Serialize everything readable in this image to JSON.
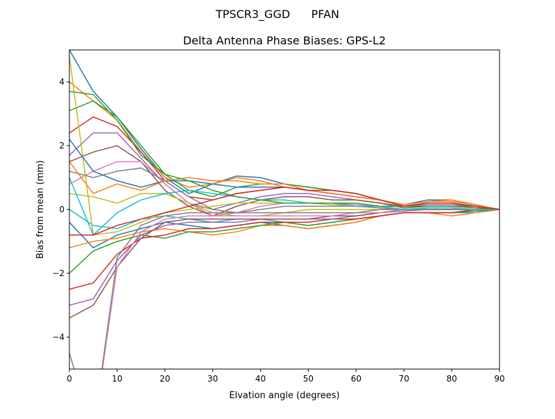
{
  "chart_data": {
    "type": "line",
    "suptitle": "TPSCR3_GGD      PFAN",
    "title": "Delta Antenna Phase Biases: GPS-L2",
    "xlabel": "Elvation angle (degrees)",
    "ylabel": "Bias from mean (mm)",
    "xlim": [
      0,
      90
    ],
    "ylim": [
      -5,
      5
    ],
    "xticks": [
      0,
      10,
      20,
      30,
      40,
      50,
      60,
      70,
      80,
      90
    ],
    "xtick_labels": [
      "0",
      "10",
      "20",
      "30",
      "40",
      "50",
      "60",
      "70",
      "80",
      "90"
    ],
    "yticks": [
      -4,
      -2,
      0,
      2,
      4
    ],
    "ytick_labels": [
      "−4",
      "−2",
      "0",
      "2",
      "4"
    ],
    "grid": false,
    "colors": [
      "#1f77b4",
      "#ff7f0e",
      "#2ca02c",
      "#d62728",
      "#9467bd",
      "#8c564b",
      "#e377c2",
      "#7f7f7f",
      "#bcbd22",
      "#17becf"
    ],
    "x": [
      0,
      5,
      10,
      15,
      20,
      25,
      30,
      35,
      40,
      45,
      50,
      55,
      60,
      65,
      70,
      75,
      80,
      85,
      90
    ],
    "series": [
      {
        "values": [
          5,
          3.7,
          2.9,
          1.9,
          1.0,
          0.5,
          0.8,
          1.05,
          1.0,
          0.8,
          0.7,
          0.6,
          0.5,
          0.3,
          0.1,
          0.2,
          0.2,
          0.1,
          0
        ]
      },
      {
        "values": [
          4.0,
          3.4,
          2.8,
          1.8,
          1.0,
          0.7,
          0.8,
          1.0,
          0.9,
          0.7,
          0.6,
          0.5,
          0.4,
          0.3,
          0.15,
          0.25,
          0.25,
          0.15,
          0
        ]
      },
      {
        "values": [
          3.1,
          3.4,
          2.9,
          2.0,
          1.1,
          0.6,
          0.4,
          0.7,
          0.8,
          0.8,
          0.7,
          0.6,
          0.5,
          0.3,
          0.1,
          0.2,
          0.2,
          0.1,
          0
        ]
      },
      {
        "values": [
          2.4,
          2.9,
          2.6,
          1.8,
          0.9,
          0.4,
          0.3,
          0.5,
          0.6,
          0.7,
          0.6,
          0.5,
          0.4,
          0.3,
          0.1,
          0.2,
          0.2,
          0.1,
          0
        ]
      },
      {
        "values": [
          1.7,
          2.4,
          2.4,
          1.6,
          0.8,
          0.2,
          0.0,
          0.2,
          0.4,
          0.5,
          0.5,
          0.4,
          0.3,
          0.2,
          0.1,
          0.15,
          0.15,
          0.1,
          0
        ]
      },
      {
        "values": [
          1.5,
          1.8,
          2.0,
          1.5,
          0.6,
          0.1,
          -0.2,
          0.1,
          0.3,
          0.4,
          0.4,
          0.3,
          0.3,
          0.2,
          0.05,
          0.1,
          0.1,
          0.05,
          0
        ]
      },
      {
        "values": [
          0.8,
          1.2,
          1.5,
          1.5,
          0.8,
          0.2,
          -0.2,
          -0.1,
          0.1,
          0.2,
          0.2,
          0.2,
          0.15,
          0.1,
          0,
          0.05,
          0.05,
          0,
          0
        ]
      },
      {
        "values": [
          1.2,
          1.0,
          1.2,
          1.3,
          0.9,
          0.4,
          0.0,
          -0.1,
          0.0,
          0.1,
          0.1,
          0.1,
          0.1,
          0.05,
          0,
          0,
          0,
          0,
          0
        ]
      },
      {
        "values": [
          0.5,
          0.4,
          0.2,
          0.5,
          0.5,
          0.2,
          -0.1,
          -0.2,
          -0.2,
          -0.1,
          0,
          0,
          0,
          0,
          0,
          0,
          0,
          0,
          0
        ]
      },
      {
        "values": [
          0,
          -0.5,
          -0.6,
          -0.3,
          -0.2,
          -0.3,
          -0.4,
          -0.3,
          -0.3,
          -0.4,
          -0.5,
          -0.4,
          -0.3,
          -0.2,
          -0.1,
          -0.1,
          -0.1,
          -0.1,
          0
        ]
      },
      {
        "values": [
          -0.4,
          -1.2,
          -0.8,
          -0.6,
          -0.4,
          -0.5,
          -0.6,
          -0.5,
          -0.4,
          -0.5,
          -0.6,
          -0.5,
          -0.4,
          -0.2,
          -0.1,
          -0.1,
          -0.1,
          -0.05,
          0
        ]
      },
      {
        "values": [
          -1.2,
          -1.0,
          -0.9,
          -0.7,
          -0.6,
          -0.7,
          -0.8,
          -0.7,
          -0.5,
          -0.5,
          -0.6,
          -0.5,
          -0.4,
          -0.2,
          -0.1,
          -0.1,
          -0.2,
          -0.1,
          0
        ]
      },
      {
        "values": [
          -2.0,
          -1.3,
          -1.0,
          -0.8,
          -0.9,
          -0.7,
          -0.7,
          -0.6,
          -0.5,
          -0.4,
          -0.5,
          -0.4,
          -0.3,
          -0.2,
          -0.1,
          -0.1,
          -0.1,
          -0.05,
          0
        ]
      },
      {
        "values": [
          -2.5,
          -2.3,
          -1.4,
          -0.9,
          -0.8,
          -0.6,
          -0.6,
          -0.5,
          -0.4,
          -0.4,
          -0.4,
          -0.3,
          -0.3,
          -0.2,
          -0.1,
          -0.1,
          -0.1,
          0,
          0
        ]
      },
      {
        "values": [
          -3.0,
          -2.8,
          -1.6,
          -0.8,
          -0.5,
          -0.4,
          -0.4,
          -0.4,
          -0.3,
          -0.3,
          -0.3,
          -0.3,
          -0.2,
          -0.1,
          -0.05,
          0,
          0,
          0,
          0
        ]
      },
      {
        "values": [
          -3.4,
          -3.0,
          -1.8,
          -0.9,
          -0.4,
          -0.3,
          -0.3,
          -0.3,
          -0.3,
          -0.3,
          -0.3,
          -0.2,
          -0.2,
          -0.1,
          0,
          0,
          0,
          0,
          0
        ]
      },
      {
        "values": [
          -5.5,
          -7,
          -1.8,
          -0.7,
          -0.3,
          -0.2,
          -0.2,
          -0.2,
          -0.2,
          -0.2,
          -0.2,
          -0.2,
          -0.1,
          -0.1,
          0,
          0,
          0,
          0,
          0
        ]
      },
      {
        "values": [
          -4.5,
          -7,
          -1.5,
          -0.5,
          -0.2,
          -0.1,
          -0.1,
          -0.1,
          -0.1,
          -0.1,
          -0.1,
          -0.1,
          -0.1,
          0,
          0,
          0,
          0,
          0,
          0
        ]
      },
      {
        "values": [
          4.8,
          -0.8,
          -0.7,
          -0.4,
          -0.1,
          0.0,
          0.1,
          0.2,
          0.2,
          0.2,
          0.2,
          0.15,
          0.1,
          0.1,
          0,
          0.05,
          0.05,
          0,
          0
        ]
      },
      {
        "values": [
          1.0,
          -0.8,
          -0.1,
          0.3,
          0.5,
          0.6,
          0.5,
          0.4,
          0.3,
          0.3,
          0.2,
          0.2,
          0.1,
          0.1,
          0,
          0.05,
          0.05,
          0,
          0
        ]
      },
      {
        "values": [
          2.2,
          1.2,
          0.9,
          0.7,
          0.9,
          0.9,
          0.8,
          0.7,
          0.7,
          0.7,
          0.6,
          0.5,
          0.4,
          0.3,
          0.15,
          0.3,
          0.3,
          0.15,
          0
        ]
      },
      {
        "values": [
          1.5,
          0.5,
          0.8,
          0.6,
          0.9,
          1.0,
          0.9,
          0.9,
          0.8,
          0.8,
          0.6,
          0.5,
          0.4,
          0.3,
          0.15,
          0.25,
          0.3,
          0.15,
          0
        ]
      },
      {
        "values": [
          3.7,
          3.6,
          2.8,
          1.7,
          1.1,
          0.9,
          0.6,
          0.4,
          0.3,
          0.2,
          0.2,
          0.2,
          0.2,
          0.1,
          0.1,
          0.1,
          0.1,
          0.1,
          0
        ]
      },
      {
        "values": [
          -0.8,
          -0.8,
          -0.5,
          -0.3,
          -0.1,
          0.1,
          0.3,
          0.5,
          0.6,
          0.7,
          0.6,
          0.6,
          0.5,
          0.3,
          0.1,
          0.2,
          0.2,
          0.1,
          0
        ]
      }
    ]
  }
}
